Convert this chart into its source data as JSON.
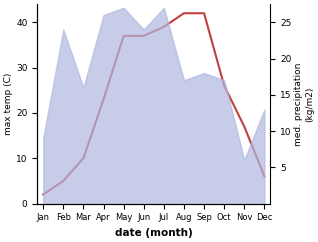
{
  "months": [
    "Jan",
    "Feb",
    "Mar",
    "Apr",
    "May",
    "Jun",
    "Jul",
    "Aug",
    "Sep",
    "Oct",
    "Nov",
    "Dec"
  ],
  "temperature": [
    2,
    5,
    10,
    23,
    37,
    37,
    39,
    42,
    42,
    26,
    17,
    6
  ],
  "precipitation": [
    9,
    24,
    16,
    26,
    27,
    24,
    27,
    17,
    18,
    17,
    6,
    13
  ],
  "temp_color": "#c04040",
  "precip_color_fill": "#b0b8e0",
  "ylabel_left": "max temp (C)",
  "ylabel_right": "med. precipitation\n(kg/m2)",
  "xlabel": "date (month)",
  "ylim_left": [
    0,
    44
  ],
  "ylim_right": [
    0,
    27.5
  ],
  "temp_yticks": [
    0,
    10,
    20,
    30,
    40
  ],
  "precip_yticks": [
    5,
    10,
    15,
    20,
    25
  ],
  "background_color": "#ffffff"
}
